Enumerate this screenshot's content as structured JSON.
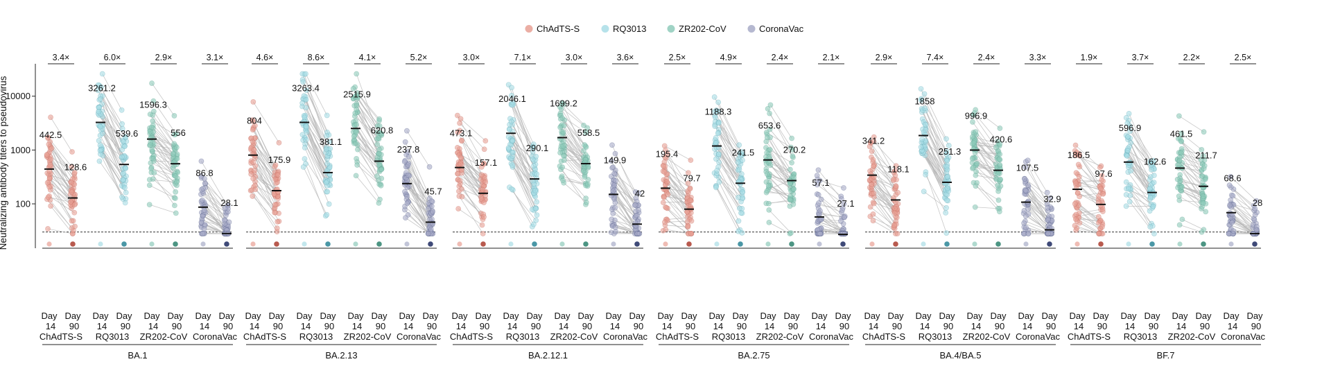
{
  "chart_data": {
    "type": "scatter",
    "subtype": "paired-dot-plot",
    "ylabel": "Neutralizing antibody titers to pseudovirus",
    "yscale": "log",
    "ylim": [
      15,
      40000
    ],
    "yticks": [
      100,
      1000,
      10000
    ],
    "ytick_labels": [
      "100",
      "1000",
      "10000"
    ],
    "detection_limit": 30,
    "legend": {
      "placement": "top-center",
      "items": [
        {
          "name": "ChAdTS-S",
          "color": "#e8a094"
        },
        {
          "name": "RQ3013",
          "color": "#a9dde6"
        },
        {
          "name": "ZR202-CoV",
          "color": "#8fcbbb"
        },
        {
          "name": "CoronaVac",
          "color": "#a8acc8"
        }
      ]
    },
    "x_tick_labels": [
      {
        "day": "Day",
        "num": "14"
      },
      {
        "day": "Day",
        "num": "90"
      }
    ],
    "vaccines": [
      {
        "name": "ChAdTS-S",
        "color": "#e8a094",
        "dark": "#b85a4e"
      },
      {
        "name": "RQ3013",
        "color": "#a9dde6",
        "dark": "#4a97a6"
      },
      {
        "name": "ZR202-CoV",
        "color": "#8fcbbb",
        "dark": "#4c9583"
      },
      {
        "name": "CoronaVac",
        "color": "#a8acc8",
        "dark": "#3f4a78"
      }
    ],
    "variants": [
      {
        "name": "BA.1",
        "groups": [
          {
            "vaccine": "ChAdTS-S",
            "day14": 442.5,
            "day90": 128.6,
            "fold": "3.4×"
          },
          {
            "vaccine": "RQ3013",
            "day14": 3261.2,
            "day90": 539.6,
            "fold": "6.0×"
          },
          {
            "vaccine": "ZR202-CoV",
            "day14": 1596.3,
            "day90": 556.0,
            "fold": "2.9×"
          },
          {
            "vaccine": "CoronaVac",
            "day14": 86.8,
            "day90": 28.1,
            "fold": "3.1×"
          }
        ]
      },
      {
        "name": "BA.2.13",
        "groups": [
          {
            "vaccine": "ChAdTS-S",
            "day14": 804.0,
            "day90": 175.9,
            "fold": "4.6×"
          },
          {
            "vaccine": "RQ3013",
            "day14": 3263.4,
            "day90": 381.1,
            "fold": "8.6×"
          },
          {
            "vaccine": "ZR202-CoV",
            "day14": 2515.9,
            "day90": 620.8,
            "fold": "4.1×"
          },
          {
            "vaccine": "CoronaVac",
            "day14": 237.8,
            "day90": 45.7,
            "fold": "5.2×"
          }
        ]
      },
      {
        "name": "BA.2.12.1",
        "groups": [
          {
            "vaccine": "ChAdTS-S",
            "day14": 473.1,
            "day90": 157.1,
            "fold": "3.0×"
          },
          {
            "vaccine": "RQ3013",
            "day14": 2046.1,
            "day90": 290.1,
            "fold": "7.1×"
          },
          {
            "vaccine": "ZR202-CoV",
            "day14": 1699.2,
            "day90": 558.5,
            "fold": "3.0×"
          },
          {
            "vaccine": "CoronaVac",
            "day14": 149.9,
            "day90": 42.0,
            "fold": "3.6×"
          }
        ]
      },
      {
        "name": "BA.2.75",
        "groups": [
          {
            "vaccine": "ChAdTS-S",
            "day14": 195.4,
            "day90": 79.7,
            "fold": "2.5×"
          },
          {
            "vaccine": "RQ3013",
            "day14": 1188.3,
            "day90": 241.5,
            "fold": "4.9×"
          },
          {
            "vaccine": "ZR202-CoV",
            "day14": 653.6,
            "day90": 270.2,
            "fold": "2.4×"
          },
          {
            "vaccine": "CoronaVac",
            "day14": 57.1,
            "day90": 27.1,
            "fold": "2.1×"
          }
        ]
      },
      {
        "name": "BA.4/BA.5",
        "groups": [
          {
            "vaccine": "ChAdTS-S",
            "day14": 341.2,
            "day90": 118.1,
            "fold": "2.9×"
          },
          {
            "vaccine": "RQ3013",
            "day14": 1858.0,
            "day90": 251.3,
            "fold": "7.4×"
          },
          {
            "vaccine": "ZR202-CoV",
            "day14": 996.9,
            "day90": 420.6,
            "fold": "2.4×"
          },
          {
            "vaccine": "CoronaVac",
            "day14": 107.5,
            "day90": 32.9,
            "fold": "3.3×"
          }
        ]
      },
      {
        "name": "BF.7",
        "groups": [
          {
            "vaccine": "ChAdTS-S",
            "day14": 186.5,
            "day90": 97.6,
            "fold": "1.9×"
          },
          {
            "vaccine": "RQ3013",
            "day14": 596.9,
            "day90": 162.6,
            "fold": "3.7×"
          },
          {
            "vaccine": "ZR202-CoV",
            "day14": 461.5,
            "day90": 211.7,
            "fold": "2.2×"
          },
          {
            "vaccine": "CoronaVac",
            "day14": 68.6,
            "day90": 28.0,
            "fold": "2.5×"
          }
        ]
      }
    ]
  }
}
